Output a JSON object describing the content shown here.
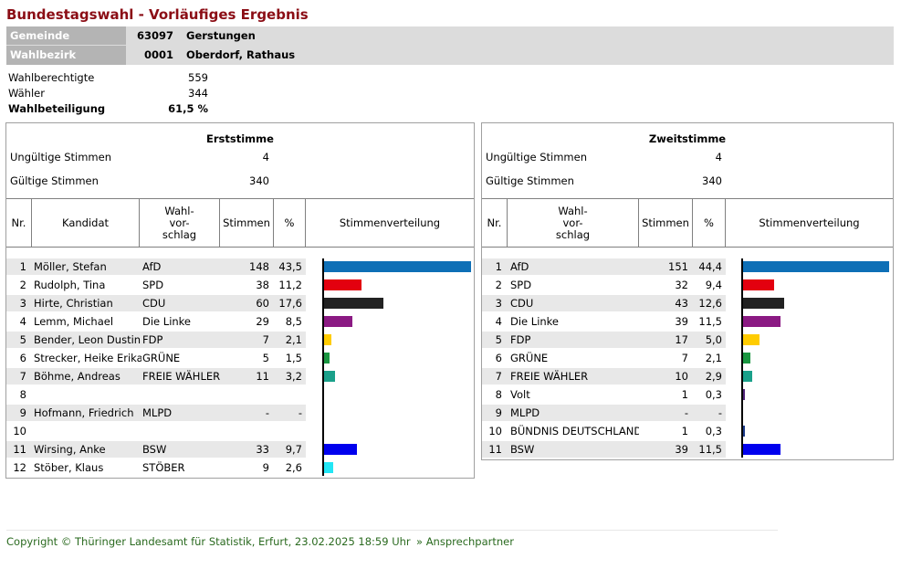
{
  "title": "Bundestagswahl - Vorläufiges Ergebnis",
  "location": {
    "gemeinde_label": "Gemeinde",
    "gemeinde_nr": "63097",
    "gemeinde_name": "Gerstungen",
    "wahlbezirk_label": "Wahlbezirk",
    "wahlbezirk_nr": "0001",
    "wahlbezirk_name": "Oberdorf, Rathaus"
  },
  "stats": {
    "wahlberechtigte_label": "Wahlberechtigte",
    "wahlberechtigte": "559",
    "waehler_label": "Wähler",
    "waehler": "344",
    "beteiligung_label": "Wahlbeteiligung",
    "beteiligung": "61,5 %"
  },
  "erst": {
    "title": "Erststimme",
    "ungueltig_label": "Ungültige Stimmen",
    "ungueltig": "4",
    "gueltig_label": "Gültige Stimmen",
    "gueltig": "340",
    "headers": {
      "nr": "Nr.",
      "kandidat": "Kandidat",
      "vorschlag": "Wahl-\nvor-\nschlag",
      "stimmen": "Stimmen",
      "pct": "%",
      "vert": "Stimmenverteilung"
    },
    "rows": [
      {
        "nr": "1",
        "kandidat": "Möller, Stefan",
        "partei": "AfD",
        "stimmen": "148",
        "pct": "43,5",
        "value": 43.5,
        "color": "#0e6fb6"
      },
      {
        "nr": "2",
        "kandidat": "Rudolph, Tina",
        "partei": "SPD",
        "stimmen": "38",
        "pct": "11,2",
        "value": 11.2,
        "color": "#e3000f"
      },
      {
        "nr": "3",
        "kandidat": "Hirte, Christian",
        "partei": "CDU",
        "stimmen": "60",
        "pct": "17,6",
        "value": 17.6,
        "color": "#222222"
      },
      {
        "nr": "4",
        "kandidat": "Lemm, Michael",
        "partei": "Die Linke",
        "stimmen": "29",
        "pct": "8,5",
        "value": 8.5,
        "color": "#8b1a83"
      },
      {
        "nr": "5",
        "kandidat": "Bender, Leon Dustin",
        "partei": "FDP",
        "stimmen": "7",
        "pct": "2,1",
        "value": 2.1,
        "color": "#ffcc00"
      },
      {
        "nr": "6",
        "kandidat": "Strecker, Heike Erika",
        "partei": "GRÜNE",
        "stimmen": "5",
        "pct": "1,5",
        "value": 1.5,
        "color": "#1a9641"
      },
      {
        "nr": "7",
        "kandidat": "Böhme, Andreas",
        "partei": "FREIE WÄHLER",
        "stimmen": "11",
        "pct": "3,2",
        "value": 3.2,
        "color": "#1aa08a"
      },
      {
        "nr": "8",
        "kandidat": "",
        "partei": "",
        "stimmen": "",
        "pct": "",
        "value": 0,
        "color": ""
      },
      {
        "nr": "9",
        "kandidat": "Hofmann, Friedrich",
        "partei": "MLPD",
        "stimmen": "-",
        "pct": "-",
        "value": 0,
        "color": ""
      },
      {
        "nr": "10",
        "kandidat": "",
        "partei": "",
        "stimmen": "",
        "pct": "",
        "value": 0,
        "color": ""
      },
      {
        "nr": "11",
        "kandidat": "Wirsing, Anke",
        "partei": "BSW",
        "stimmen": "33",
        "pct": "9,7",
        "value": 9.7,
        "color": "#0000ee"
      },
      {
        "nr": "12",
        "kandidat": "Stöber, Klaus",
        "partei": "STÖBER",
        "stimmen": "9",
        "pct": "2,6",
        "value": 2.6,
        "color": "#22e6f5"
      }
    ]
  },
  "zweit": {
    "title": "Zweitstimme",
    "ungueltig_label": "Ungültige Stimmen",
    "ungueltig": "4",
    "gueltig_label": "Gültige Stimmen",
    "gueltig": "340",
    "headers": {
      "nr": "Nr.",
      "vorschlag": "Wahl-\nvor-\nschlag",
      "stimmen": "Stimmen",
      "pct": "%",
      "vert": "Stimmenverteilung"
    },
    "rows": [
      {
        "nr": "1",
        "partei": "AfD",
        "stimmen": "151",
        "pct": "44,4",
        "value": 44.4,
        "color": "#0e6fb6"
      },
      {
        "nr": "2",
        "partei": "SPD",
        "stimmen": "32",
        "pct": "9,4",
        "value": 9.4,
        "color": "#e3000f"
      },
      {
        "nr": "3",
        "partei": "CDU",
        "stimmen": "43",
        "pct": "12,6",
        "value": 12.6,
        "color": "#222222"
      },
      {
        "nr": "4",
        "partei": "Die Linke",
        "stimmen": "39",
        "pct": "11,5",
        "value": 11.5,
        "color": "#8b1a83"
      },
      {
        "nr": "5",
        "partei": "FDP",
        "stimmen": "17",
        "pct": "5,0",
        "value": 5.0,
        "color": "#ffcc00"
      },
      {
        "nr": "6",
        "partei": "GRÜNE",
        "stimmen": "7",
        "pct": "2,1",
        "value": 2.1,
        "color": "#1a9641"
      },
      {
        "nr": "7",
        "partei": "FREIE WÄHLER",
        "stimmen": "10",
        "pct": "2,9",
        "value": 2.9,
        "color": "#1aa08a"
      },
      {
        "nr": "8",
        "partei": "Volt",
        "stimmen": "1",
        "pct": "0,3",
        "value": 0.3,
        "color": "#502379"
      },
      {
        "nr": "9",
        "partei": "MLPD",
        "stimmen": "-",
        "pct": "-",
        "value": 0,
        "color": ""
      },
      {
        "nr": "10",
        "partei": "BÜNDNIS DEUTSCHLAND",
        "stimmen": "1",
        "pct": "0,3",
        "value": 0.3,
        "color": "#1a3a8a"
      },
      {
        "nr": "11",
        "partei": "BSW",
        "stimmen": "39",
        "pct": "11,5",
        "value": 11.5,
        "color": "#0000ee"
      }
    ]
  },
  "footer": {
    "copyright": "Copyright © Thüringer Landesamt für Statistik, Erfurt, 23.02.2025 18:59 Uhr",
    "link": "» Ansprechpartner"
  }
}
